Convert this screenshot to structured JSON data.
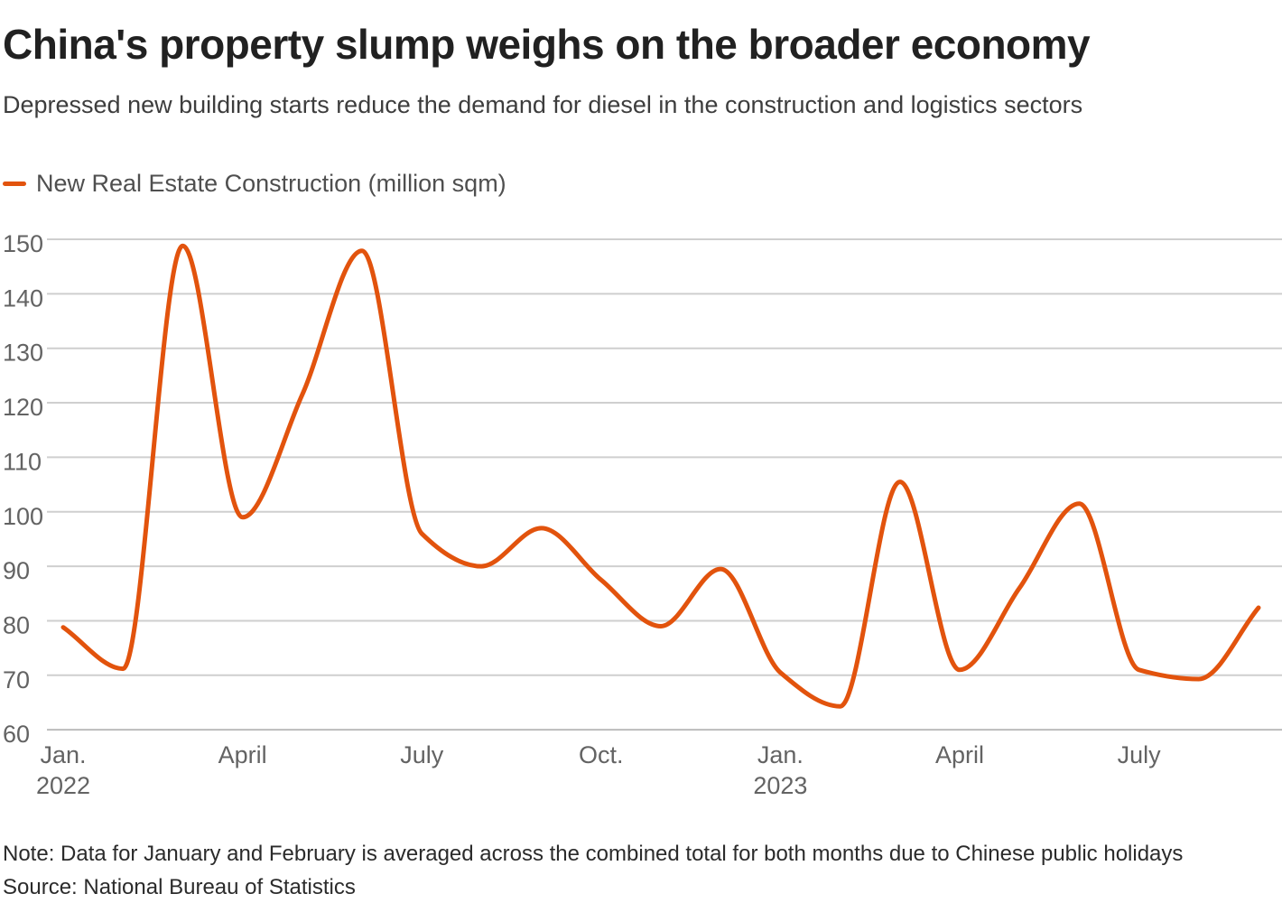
{
  "header": {
    "title": "China's property slump weighs on the broader economy",
    "subtitle": "Depressed new building starts reduce the demand for diesel in the construction and logistics sectors"
  },
  "legend": {
    "label": "New Real Estate Construction (million sqm)"
  },
  "footer": {
    "note": "Note: Data for January and February is averaged across the combined total for both months due to Chinese public holidays",
    "source": "Source: National Bureau of Statistics"
  },
  "colors": {
    "line": "#e2530d",
    "grid": "#cfcfcf",
    "grid_base": "#bcbcbc",
    "tick_text": "#636363",
    "title_text": "#212121",
    "subtitle_text": "#3d3d3d",
    "legend_text": "#4f4f4f",
    "note_text": "#2b2b2b"
  },
  "chart_data": {
    "type": "line",
    "title": "China's property slump weighs on the broader economy",
    "subtitle": "Depressed new building starts reduce the demand for diesel in the construction and logistics sectors",
    "xlabel": "",
    "ylabel": "",
    "x": [
      "Jan. 2022",
      "Feb. 2022",
      "Mar. 2022",
      "Apr. 2022",
      "May 2022",
      "Jun. 2022",
      "Jul. 2022",
      "Aug. 2022",
      "Sep. 2022",
      "Oct. 2022",
      "Nov. 2022",
      "Dec. 2022",
      "Jan. 2023",
      "Feb. 2023",
      "Mar. 2023",
      "Apr. 2023",
      "May 2023",
      "Jun. 2023",
      "Jul. 2023",
      "Aug. 2023",
      "Sep. 2023"
    ],
    "series": [
      {
        "name": "New Real Estate Construction (million sqm)",
        "color": "#e2530d",
        "values": [
          78.8,
          71.2,
          148.8,
          99,
          121.5,
          147.9,
          96,
          90,
          97,
          87.5,
          79,
          89.5,
          70.5,
          64.3,
          105.5,
          71,
          86,
          101.5,
          71,
          69.3,
          82.4
        ]
      }
    ],
    "ylim": [
      60,
      150
    ],
    "yticks": [
      60,
      70,
      80,
      90,
      100,
      110,
      120,
      130,
      140,
      150
    ],
    "xticks": [
      {
        "index": 0,
        "label": "Jan.",
        "year": "2022"
      },
      {
        "index": 3,
        "label": "April",
        "year": ""
      },
      {
        "index": 6,
        "label": "July",
        "year": ""
      },
      {
        "index": 9,
        "label": "Oct.",
        "year": ""
      },
      {
        "index": 12,
        "label": "Jan.",
        "year": "2023"
      },
      {
        "index": 15,
        "label": "April",
        "year": ""
      },
      {
        "index": 18,
        "label": "July",
        "year": ""
      }
    ],
    "grid": "horizontal",
    "legend_position": "top-left",
    "smoothing": "monotone"
  }
}
